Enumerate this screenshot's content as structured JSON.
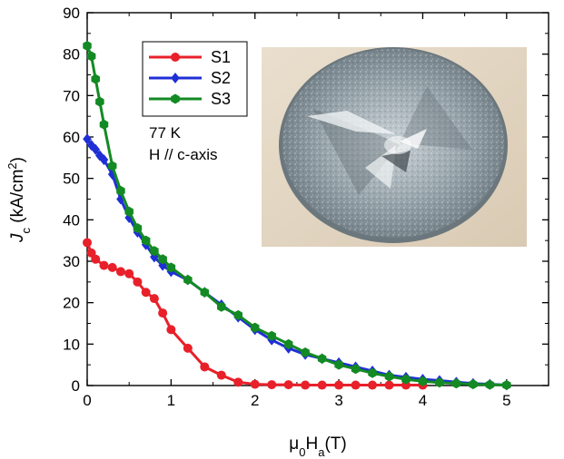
{
  "chart_data": {
    "type": "line",
    "xlabel": {
      "main": "μ",
      "sub1": "0",
      "mid": "H",
      "sub2": "a",
      "end": "(T)"
    },
    "ylabel": {
      "main": "J",
      "sub": "c",
      "mid": " (kA/cm",
      "sup": "2",
      "end": ")"
    },
    "xlim": [
      0,
      5.5
    ],
    "ylim": [
      0,
      90
    ],
    "x_ticks": [
      0,
      1,
      2,
      3,
      4,
      5
    ],
    "y_ticks": [
      0,
      10,
      20,
      30,
      40,
      50,
      60,
      70,
      80,
      90
    ],
    "grid": false,
    "legend_position": "top-left",
    "annotations": [
      "77 K",
      "H // c-axis"
    ],
    "inset": "photograph of a disk-shaped bulk superconductor sample",
    "series": [
      {
        "name": "S1",
        "color": "#e8202a",
        "marker": "circle",
        "x": [
          0.0,
          0.05,
          0.1,
          0.2,
          0.3,
          0.4,
          0.5,
          0.6,
          0.7,
          0.8,
          0.9,
          1.0,
          1.2,
          1.4,
          1.6,
          1.8,
          2.0,
          2.2,
          2.4,
          2.6,
          2.8,
          3.0,
          3.2,
          3.4,
          3.6,
          3.8,
          4.0
        ],
        "y": [
          34.5,
          32.0,
          30.5,
          29.0,
          28.5,
          27.5,
          27.0,
          25.0,
          22.5,
          21.0,
          17.5,
          13.5,
          9.0,
          4.5,
          2.5,
          0.8,
          0.3,
          0.2,
          0.2,
          0.1,
          0.1,
          0.1,
          0.1,
          0.1,
          0.1,
          0.1,
          0.1
        ]
      },
      {
        "name": "S2",
        "color": "#1f2fd6",
        "marker": "diamond",
        "x": [
          0.0,
          0.05,
          0.1,
          0.15,
          0.2,
          0.3,
          0.4,
          0.5,
          0.6,
          0.7,
          0.8,
          0.9,
          1.0,
          1.2,
          1.4,
          1.6,
          1.8,
          2.0,
          2.2,
          2.4,
          2.6,
          2.8,
          3.0,
          3.2,
          3.4,
          3.6,
          3.8,
          4.0,
          4.2,
          4.4,
          4.6,
          4.8,
          5.0
        ],
        "y": [
          59.5,
          58.0,
          57.0,
          55.5,
          54.5,
          51.0,
          45.0,
          40.5,
          37.0,
          34.0,
          31.0,
          29.0,
          27.5,
          25.5,
          22.5,
          19.5,
          16.5,
          13.5,
          11.0,
          9.0,
          7.5,
          6.5,
          5.5,
          4.5,
          3.5,
          2.5,
          2.0,
          1.5,
          1.2,
          0.8,
          0.5,
          0.3,
          0.1
        ]
      },
      {
        "name": "S3",
        "color": "#138a23",
        "marker": "hexagon",
        "x": [
          0.0,
          0.05,
          0.1,
          0.15,
          0.2,
          0.3,
          0.4,
          0.5,
          0.6,
          0.7,
          0.8,
          0.9,
          1.0,
          1.2,
          1.4,
          1.6,
          1.8,
          2.0,
          2.2,
          2.4,
          2.6,
          2.8,
          3.0,
          3.2,
          3.4,
          3.6,
          3.8,
          4.0,
          4.2,
          4.4,
          4.6,
          4.8,
          5.0
        ],
        "y": [
          82.0,
          79.5,
          74.0,
          68.5,
          63.0,
          53.0,
          47.0,
          42.0,
          38.0,
          35.0,
          32.5,
          30.5,
          28.5,
          25.5,
          22.5,
          19.0,
          17.0,
          14.0,
          12.0,
          10.0,
          8.0,
          6.5,
          5.0,
          4.0,
          3.0,
          2.2,
          1.5,
          1.0,
          0.7,
          0.5,
          0.3,
          0.2,
          0.1
        ]
      }
    ]
  }
}
